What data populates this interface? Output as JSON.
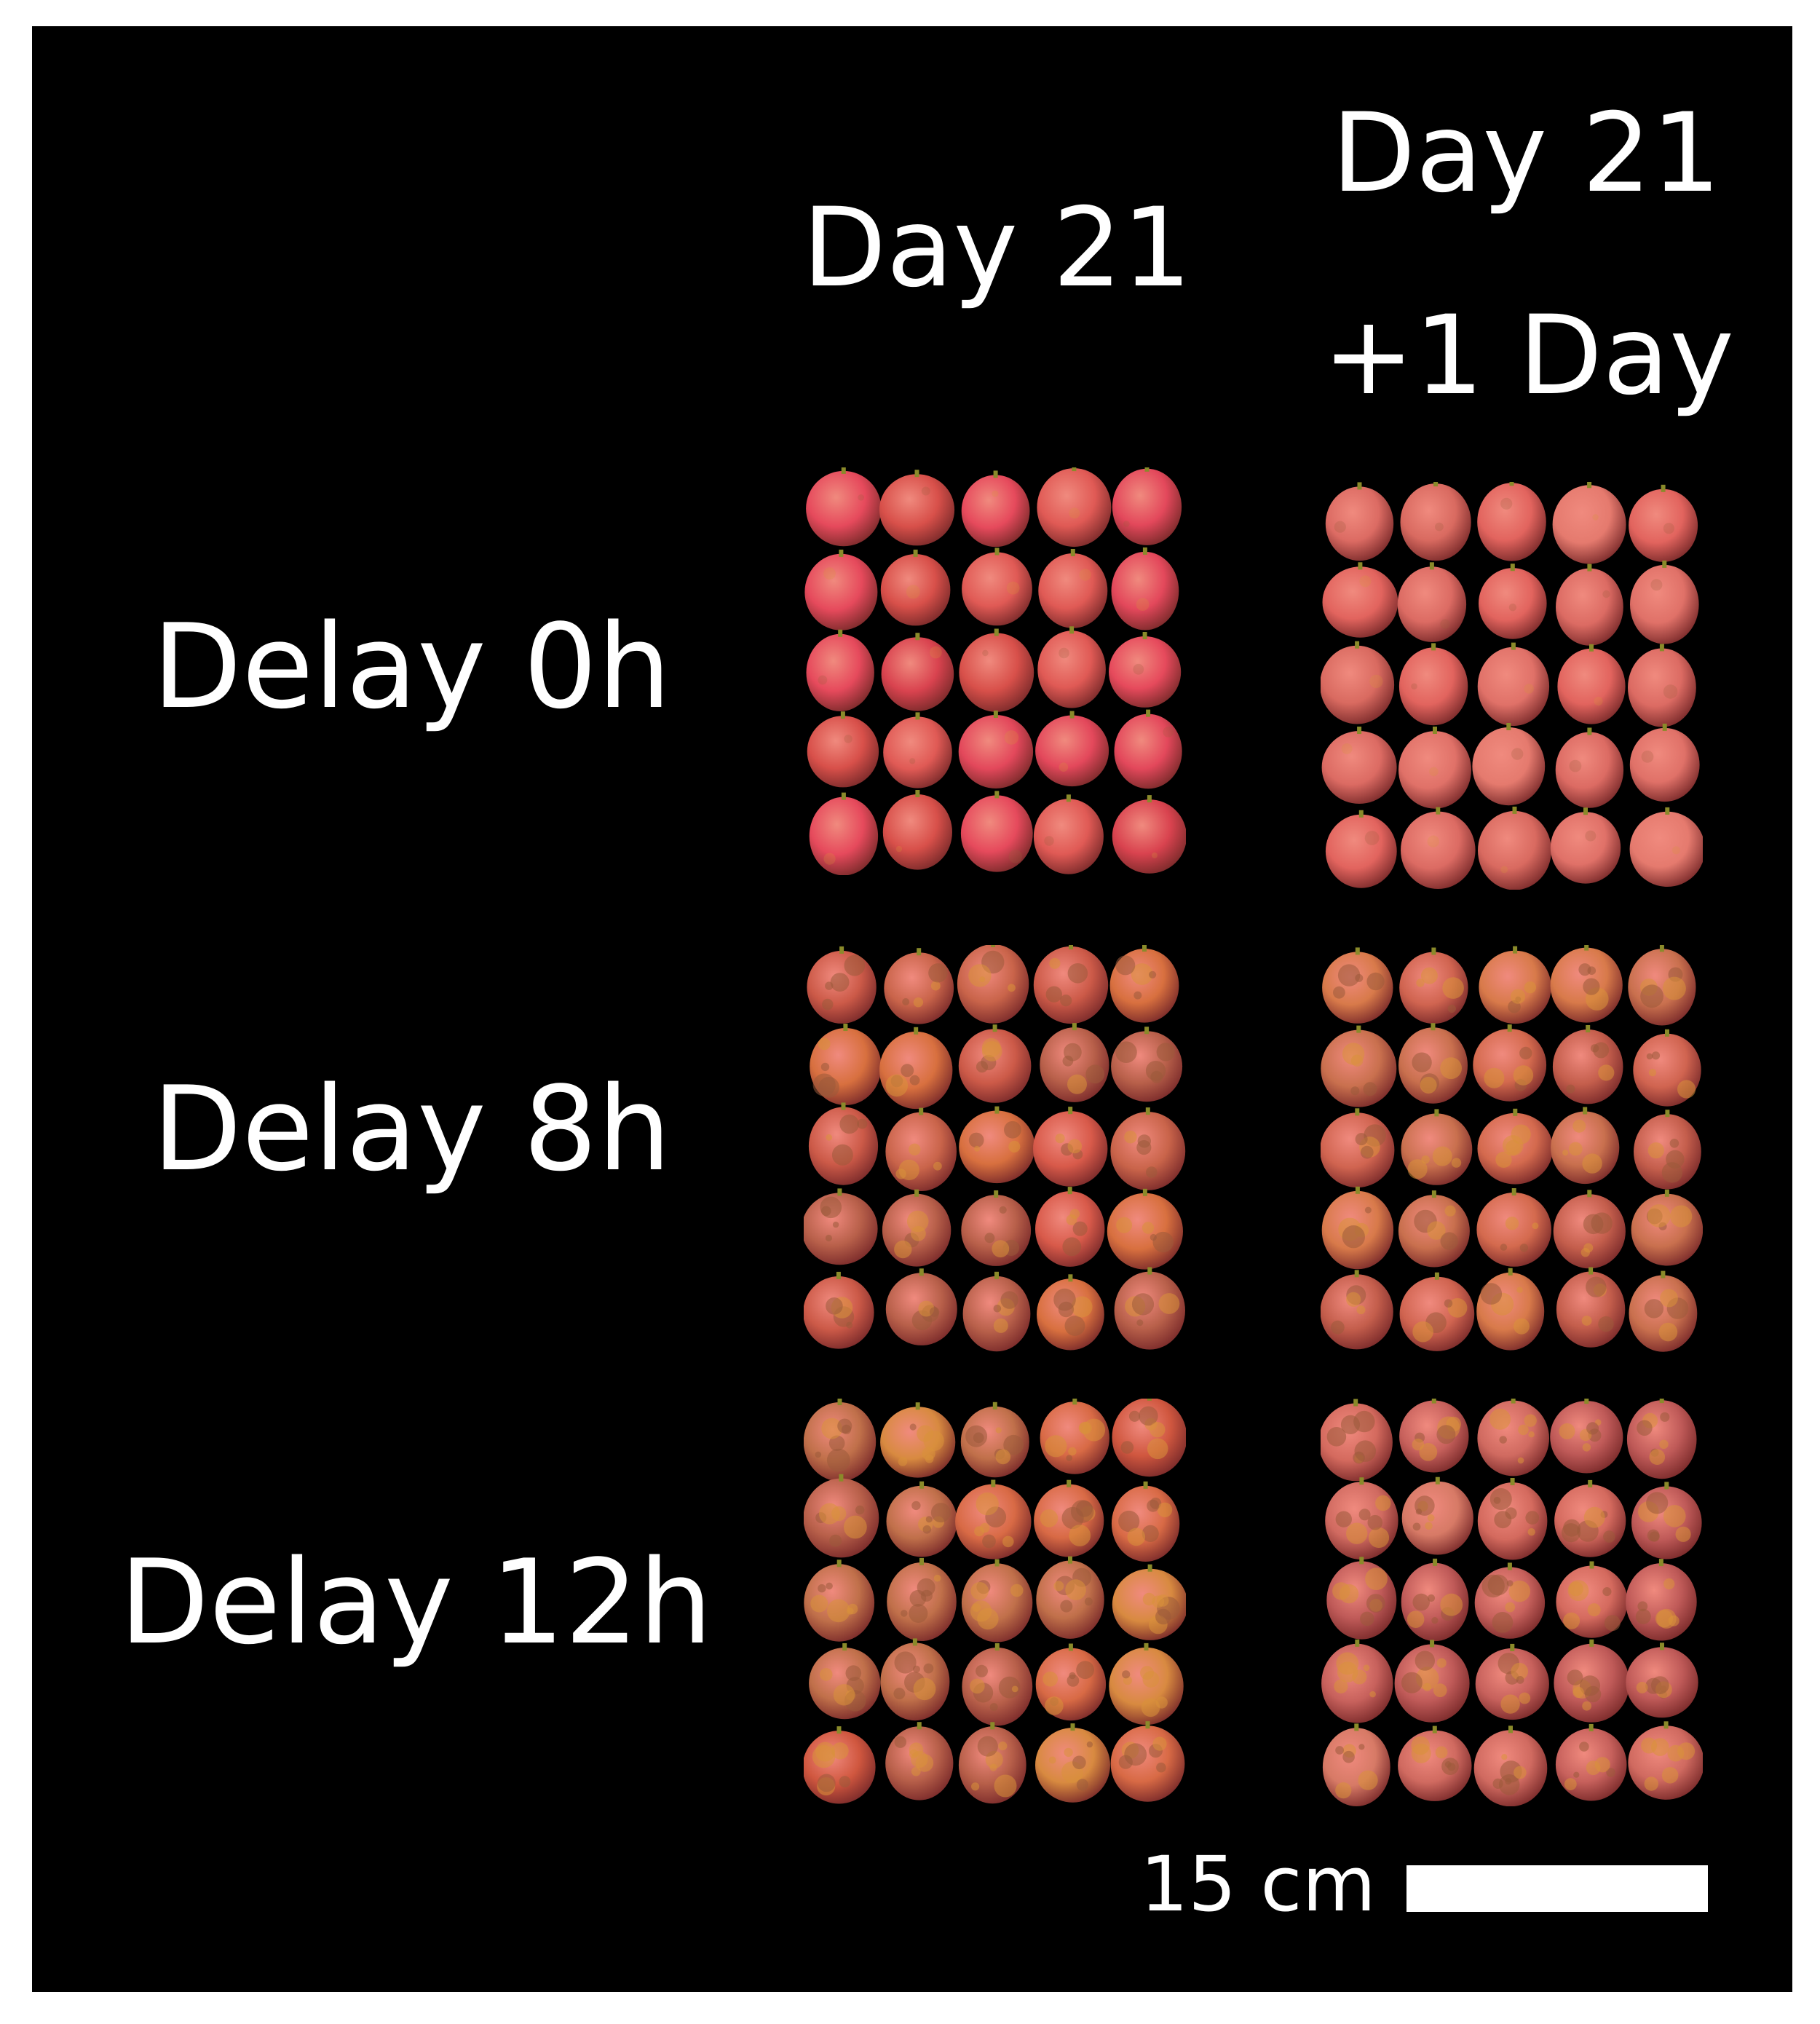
{
  "columns": [
    {
      "id": "day21",
      "line1": "Day 21",
      "line2": ""
    },
    {
      "id": "day21plus1",
      "line1": "Day 21",
      "line2": "+1 Day"
    }
  ],
  "rows": [
    {
      "id": "delay0",
      "label": "Delay 0h"
    },
    {
      "id": "delay8",
      "label": "Delay 8h"
    },
    {
      "id": "delay12",
      "label": "Delay 12h"
    }
  ],
  "scale_bar": {
    "label": "15 cm",
    "length_cm": 15
  },
  "grid": {
    "fruits_per_row": 5,
    "fruits_per_column": 5,
    "subject": "lychee fruit"
  },
  "colors": {
    "background": "#000000",
    "text": "#ffffff",
    "fruit_fresh": "#e0485a",
    "fruit_browned": "#9a5a3a",
    "fruit_yellowed": "#d9923a"
  }
}
